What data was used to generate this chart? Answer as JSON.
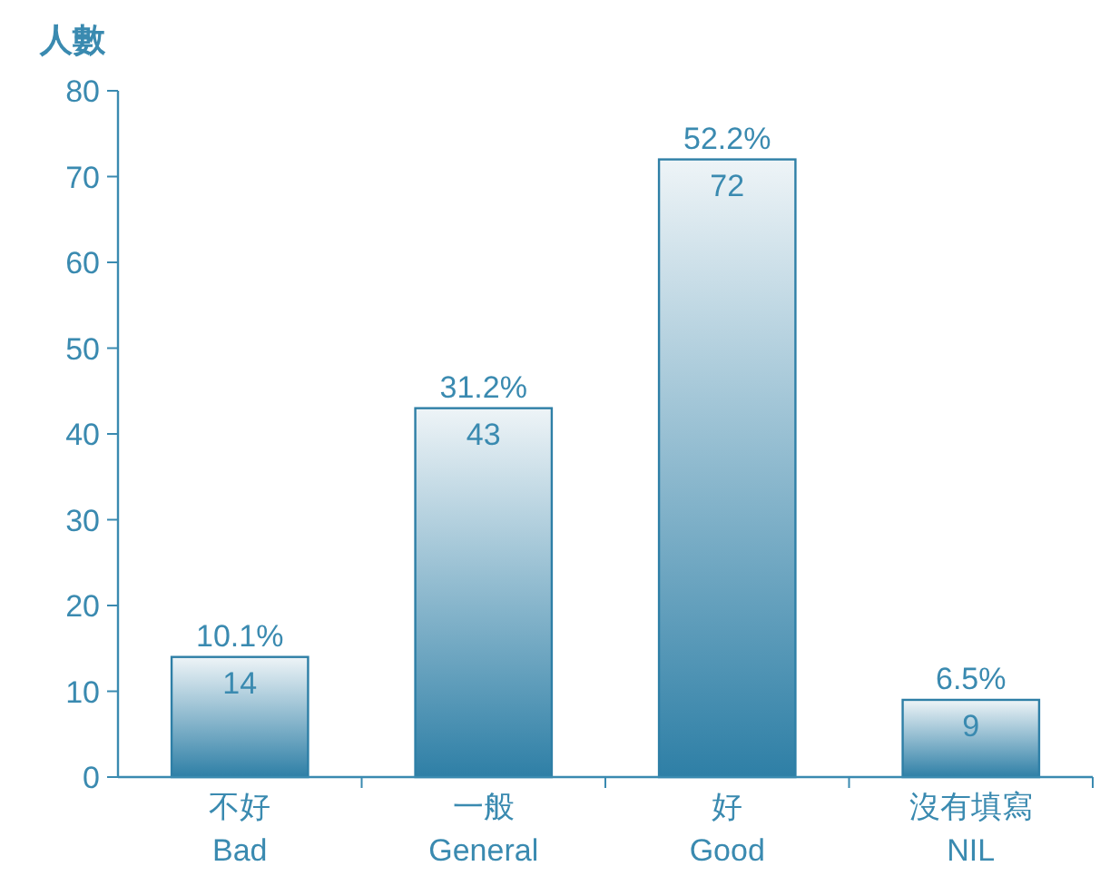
{
  "chart_data": {
    "type": "bar",
    "ylabel": "人數",
    "categories": [
      "不好\nBad",
      "一般\nGeneral",
      "好\nGood",
      "沒有填寫\nNIL"
    ],
    "values": [
      14,
      43,
      72,
      9
    ],
    "color": "#2e7fa6",
    "ylim": [
      0,
      80
    ],
    "yticks": [
      0,
      10,
      20,
      30,
      40,
      50,
      60,
      70,
      80
    ],
    "grid": false,
    "data_labels": true,
    "annotations": [
      {
        "text": "10.1%",
        "x": "不好\nBad",
        "y": 14
      },
      {
        "text": "31.2%",
        "x": "一般\nGeneral",
        "y": 43
      },
      {
        "text": "52.2%",
        "x": "好\nGood",
        "y": 72
      },
      {
        "text": "6.5%",
        "x": "沒有填寫\nNIL",
        "y": 9
      }
    ]
  }
}
